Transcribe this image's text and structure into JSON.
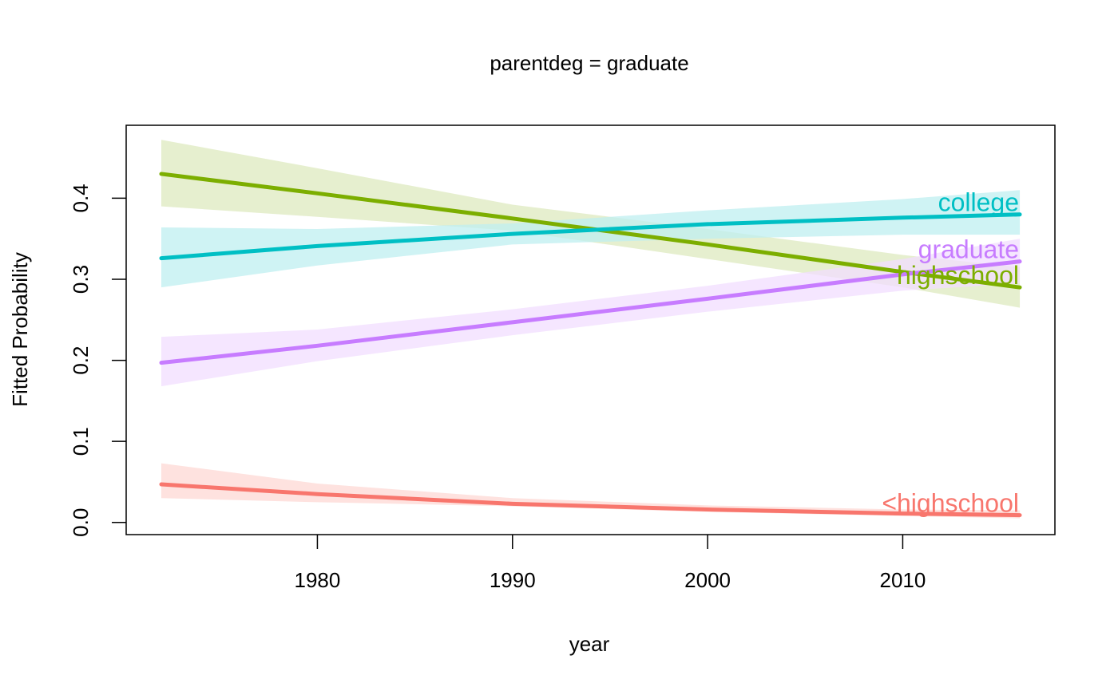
{
  "chart_data": {
    "type": "line",
    "title": "parentdeg = graduate",
    "xlabel": "year",
    "ylabel": "Fitted Probability",
    "xlim": [
      1970.2,
      2017.8
    ],
    "ylim": [
      -0.015,
      0.49
    ],
    "x_ticks": [
      1980,
      1990,
      2000,
      2010
    ],
    "y_ticks": [
      0.0,
      0.1,
      0.2,
      0.3,
      0.4
    ],
    "x_tick_labels": [
      "1980",
      "1990",
      "2000",
      "2010"
    ],
    "y_tick_labels": [
      "0.0",
      "0.1",
      "0.2",
      "0.3",
      "0.4"
    ],
    "grid": false,
    "legend": "none (labels placed at line ends)",
    "series": [
      {
        "name": "<highschool",
        "color": "#F8766D",
        "band_color": "#FDD8D4",
        "x": [
          1972,
          1980,
          1990,
          2000,
          2010,
          2016
        ],
        "y": [
          0.047,
          0.035,
          0.023,
          0.016,
          0.011,
          0.009
        ],
        "lower": [
          0.03,
          0.025,
          0.02,
          0.013,
          0.008,
          0.005
        ],
        "upper": [
          0.073,
          0.048,
          0.03,
          0.021,
          0.016,
          0.015
        ]
      },
      {
        "name": "highschool",
        "color": "#7CAE00",
        "band_color": "#DDEABF",
        "x": [
          1972,
          1980,
          1990,
          2000,
          2010,
          2016
        ],
        "y": [
          0.43,
          0.406,
          0.375,
          0.343,
          0.309,
          0.29
        ],
        "lower": [
          0.39,
          0.377,
          0.36,
          0.325,
          0.29,
          0.265
        ],
        "upper": [
          0.472,
          0.437,
          0.392,
          0.362,
          0.33,
          0.315
        ]
      },
      {
        "name": "college",
        "color": "#00BFC4",
        "band_color": "#BFEFF0",
        "x": [
          1972,
          1980,
          1990,
          2000,
          2010,
          2016
        ],
        "y": [
          0.326,
          0.341,
          0.356,
          0.368,
          0.376,
          0.38
        ],
        "lower": [
          0.29,
          0.317,
          0.343,
          0.35,
          0.355,
          0.355
        ],
        "upper": [
          0.364,
          0.362,
          0.369,
          0.385,
          0.399,
          0.41
        ]
      },
      {
        "name": "graduate",
        "color": "#C77CFF",
        "band_color": "#F1DEFF",
        "x": [
          1972,
          1980,
          1990,
          2000,
          2010,
          2016
        ],
        "y": [
          0.197,
          0.218,
          0.247,
          0.276,
          0.306,
          0.322
        ],
        "lower": [
          0.168,
          0.199,
          0.231,
          0.26,
          0.286,
          0.295
        ],
        "upper": [
          0.229,
          0.238,
          0.263,
          0.292,
          0.325,
          0.35
        ]
      }
    ]
  }
}
